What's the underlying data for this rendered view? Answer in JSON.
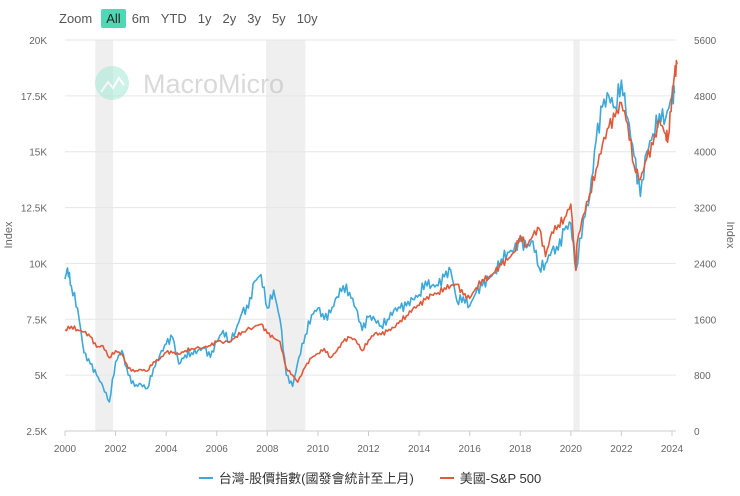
{
  "zoom": {
    "label": "Zoom",
    "options": [
      "All",
      "6m",
      "YTD",
      "1y",
      "2y",
      "3y",
      "5y",
      "10y"
    ],
    "selected": "All"
  },
  "watermark": "MacroMicro",
  "chart_data": {
    "type": "line",
    "xlim": [
      2000,
      2024.3
    ],
    "x_ticks": [
      "2000",
      "2002",
      "2004",
      "2006",
      "2008",
      "2010",
      "2012",
      "2014",
      "2016",
      "2018",
      "2020",
      "2022",
      "2024"
    ],
    "y_left": {
      "label": "Index",
      "lim": [
        2500,
        20000
      ],
      "ticks": [
        "2.5K",
        "5K",
        "7.5K",
        "10K",
        "12.5K",
        "15K",
        "17.5K",
        "20K"
      ]
    },
    "y_right": {
      "label": "Index",
      "lim": [
        0,
        5600
      ],
      "ticks": [
        "0",
        "800",
        "1600",
        "2400",
        "3200",
        "4000",
        "4800",
        "5600"
      ]
    },
    "grid": true,
    "legend": "bottom",
    "recessions": [
      [
        2001.2,
        2001.9
      ],
      [
        2007.95,
        2009.5
      ],
      [
        2020.1,
        2020.35
      ]
    ],
    "series": [
      {
        "name": "台灣-股價指數(國發會統計至上月)",
        "axis": "left",
        "color": "#3ea8d8",
        "x": [
          2000,
          2000.1,
          2000.25,
          2000.5,
          2000.75,
          2001,
          2001.25,
          2001.5,
          2001.75,
          2002,
          2002.25,
          2002.5,
          2002.75,
          2003,
          2003.25,
          2003.5,
          2003.75,
          2004,
          2004.25,
          2004.5,
          2004.75,
          2005,
          2005.25,
          2005.5,
          2005.75,
          2006,
          2006.25,
          2006.5,
          2006.75,
          2007,
          2007.25,
          2007.5,
          2007.75,
          2008,
          2008.25,
          2008.5,
          2008.75,
          2009,
          2009.25,
          2009.5,
          2009.75,
          2010,
          2010.25,
          2010.5,
          2010.75,
          2011,
          2011.25,
          2011.5,
          2011.75,
          2012,
          2012.25,
          2012.5,
          2012.75,
          2013,
          2013.25,
          2013.5,
          2013.75,
          2014,
          2014.25,
          2014.5,
          2014.75,
          2015,
          2015.25,
          2015.5,
          2015.75,
          2016,
          2016.25,
          2016.5,
          2016.75,
          2017,
          2017.25,
          2017.5,
          2017.75,
          2018,
          2018.25,
          2018.5,
          2018.75,
          2019,
          2019.25,
          2019.5,
          2019.75,
          2020,
          2020.2,
          2020.5,
          2020.75,
          2021,
          2021.25,
          2021.5,
          2021.75,
          2022,
          2022.25,
          2022.5,
          2022.75,
          2023,
          2023.25,
          2023.5,
          2023.75,
          2024,
          2024.1
        ],
        "y": [
          9300,
          9800,
          9000,
          8000,
          6000,
          5500,
          5000,
          4500,
          3800,
          5600,
          6100,
          5000,
          4500,
          4600,
          4400,
          5300,
          5900,
          6400,
          6700,
          5500,
          5900,
          6000,
          6100,
          6200,
          5800,
          6500,
          7000,
          6500,
          7000,
          7800,
          8000,
          9200,
          9500,
          8000,
          8800,
          7500,
          5000,
          4500,
          5800,
          6800,
          7700,
          8000,
          7500,
          7800,
          8500,
          9000,
          8700,
          8000,
          7000,
          7600,
          7500,
          7200,
          7500,
          7900,
          8000,
          8100,
          8400,
          8600,
          9200,
          9000,
          9000,
          9400,
          9700,
          8300,
          8500,
          8100,
          8700,
          9000,
          9300,
          9600,
          10200,
          10500,
          10600,
          11000,
          10700,
          11000,
          9800,
          10000,
          10600,
          10600,
          11500,
          11800,
          9700,
          12000,
          13000,
          15500,
          17000,
          17500,
          17000,
          18200,
          16500,
          14800,
          13000,
          15000,
          15800,
          16700,
          16500,
          17500,
          17600
        ]
      },
      {
        "name": "美國-S&P 500",
        "axis": "right",
        "color": "#e05a3a",
        "x": [
          2000,
          2000.25,
          2000.5,
          2000.75,
          2001,
          2001.25,
          2001.5,
          2001.75,
          2002,
          2002.25,
          2002.5,
          2002.75,
          2003,
          2003.25,
          2003.5,
          2003.75,
          2004,
          2004.25,
          2004.5,
          2004.75,
          2005,
          2005.5,
          2005.75,
          2006,
          2006.5,
          2006.75,
          2007,
          2007.5,
          2007.75,
          2008,
          2008.25,
          2008.5,
          2008.75,
          2009,
          2009.2,
          2009.5,
          2009.75,
          2010,
          2010.25,
          2010.5,
          2010.75,
          2011,
          2011.25,
          2011.5,
          2011.75,
          2012,
          2012.25,
          2012.5,
          2012.75,
          2013,
          2013.25,
          2013.5,
          2013.75,
          2014,
          2014.25,
          2014.5,
          2014.75,
          2015,
          2015.25,
          2015.5,
          2015.75,
          2016,
          2016.25,
          2016.5,
          2016.75,
          2017,
          2017.25,
          2017.5,
          2017.75,
          2018,
          2018.25,
          2018.5,
          2018.75,
          2019,
          2019.25,
          2019.5,
          2019.75,
          2020,
          2020.2,
          2020.25,
          2020.5,
          2020.75,
          2021,
          2021.25,
          2021.5,
          2021.75,
          2022,
          2022.25,
          2022.5,
          2022.75,
          2023,
          2023.25,
          2023.5,
          2023.75,
          2023.85,
          2024,
          2024.1,
          2024.2
        ],
        "y": [
          1450,
          1500,
          1450,
          1420,
          1350,
          1200,
          1220,
          1050,
          1150,
          1100,
          900,
          850,
          880,
          860,
          990,
          1030,
          1130,
          1120,
          1100,
          1150,
          1180,
          1200,
          1220,
          1280,
          1270,
          1350,
          1420,
          1500,
          1530,
          1400,
          1330,
          1280,
          900,
          800,
          700,
          920,
          1050,
          1110,
          1180,
          1050,
          1150,
          1280,
          1340,
          1300,
          1150,
          1300,
          1400,
          1380,
          1430,
          1480,
          1580,
          1650,
          1750,
          1800,
          1880,
          1950,
          1980,
          2050,
          2080,
          2100,
          1950,
          1900,
          2050,
          2170,
          2200,
          2280,
          2380,
          2450,
          2560,
          2800,
          2650,
          2800,
          2900,
          2500,
          2850,
          2950,
          3050,
          3250,
          2300,
          2700,
          3100,
          3400,
          3750,
          4100,
          4350,
          4500,
          4700,
          4400,
          3800,
          3600,
          3900,
          4100,
          4450,
          4250,
          4200,
          4800,
          5100,
          5250
        ]
      }
    ]
  }
}
